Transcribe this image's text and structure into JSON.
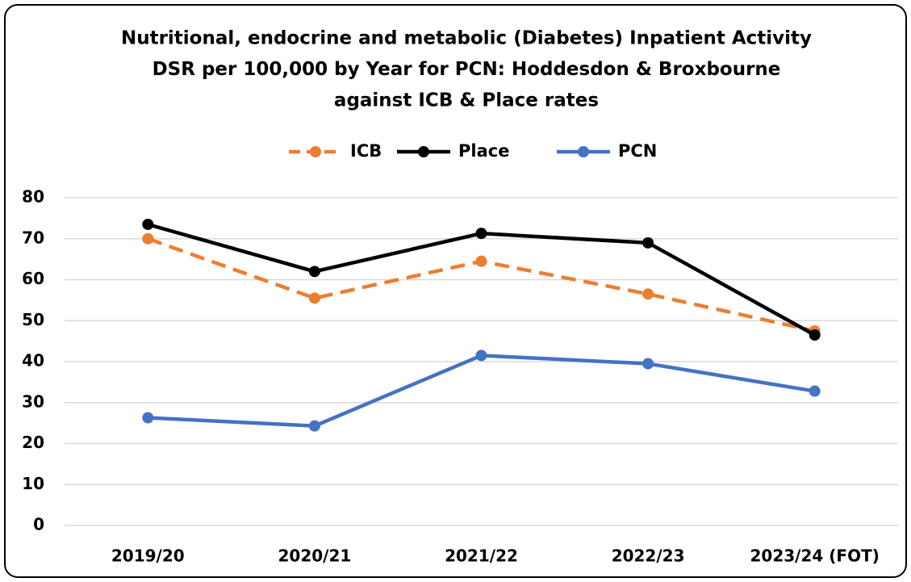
{
  "chart_data": {
    "type": "line",
    "title": [
      "Nutritional, endocrine and metabolic (Diabetes)  Inpatient Activity",
      "DSR per 100,000 by Year for PCN: Hoddesdon & Broxbourne",
      "against ICB & Place rates"
    ],
    "categories": [
      "2019/20",
      "2020/21",
      "2021/22",
      "2022/23",
      "2023/24 (FOT)"
    ],
    "series": [
      {
        "name": "ICB",
        "color": "#ed7d31",
        "dashed": true,
        "values": [
          70,
          55.5,
          64.5,
          56.5,
          47.5
        ]
      },
      {
        "name": "Place",
        "color": "#000000",
        "dashed": false,
        "values": [
          73.5,
          62,
          71.3,
          69,
          46.5
        ]
      },
      {
        "name": "PCN",
        "color": "#4472c4",
        "dashed": false,
        "values": [
          26.3,
          24.3,
          41.5,
          39.5,
          32.8
        ]
      }
    ],
    "ylim": [
      0,
      80
    ],
    "yticks": [
      0,
      10,
      20,
      30,
      40,
      50,
      60,
      70,
      80
    ],
    "grid": true,
    "legend": "top"
  }
}
